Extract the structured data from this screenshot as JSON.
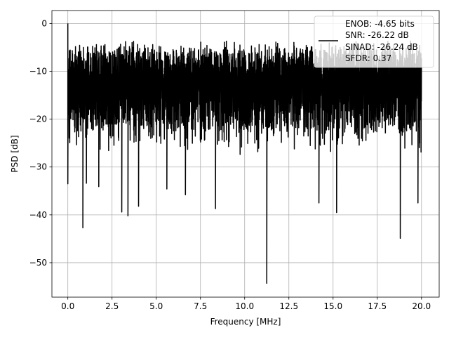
{
  "chart_data": {
    "type": "line",
    "title": "",
    "xlabel": "Frequency [MHz]",
    "ylabel": "PSD [dB]",
    "xlim": [
      -0.9,
      21.0
    ],
    "ylim": [
      -57.2,
      2.7
    ],
    "x_ticks": [
      "0.0",
      "2.5",
      "5.0",
      "7.5",
      "10.0",
      "12.5",
      "15.0",
      "17.5",
      "20.0"
    ],
    "y_ticks": [
      "0",
      "−10",
      "−20",
      "−30",
      "−40",
      "−50"
    ],
    "grid": true,
    "legend_placement": "upper-right",
    "legend_entries": [
      "ENOB: -4.65 bits",
      "SNR: -26.22 dB",
      "SINAD: -26.24 dB",
      "SFDR: 0.37"
    ],
    "series": [
      {
        "color": "#000000",
        "x_range": [
          0,
          20
        ],
        "typical_upper_db": -5,
        "typical_lower_db": -25,
        "notable_points": [
          {
            "x": 0.0,
            "y": 0.0
          },
          {
            "x": 0.0,
            "y": -33.5
          },
          {
            "x": 0.85,
            "y": -42.7
          },
          {
            "x": 1.05,
            "y": -33.4
          },
          {
            "x": 1.75,
            "y": -34.1
          },
          {
            "x": 3.05,
            "y": -39.4
          },
          {
            "x": 3.4,
            "y": -40.2
          },
          {
            "x": 4.0,
            "y": -38.2
          },
          {
            "x": 5.6,
            "y": -34.6
          },
          {
            "x": 6.65,
            "y": -35.8
          },
          {
            "x": 8.35,
            "y": -38.7
          },
          {
            "x": 11.25,
            "y": -54.3
          },
          {
            "x": 14.2,
            "y": -37.5
          },
          {
            "x": 15.2,
            "y": -39.5
          },
          {
            "x": 18.8,
            "y": -44.9
          },
          {
            "x": 19.8,
            "y": -37.5
          }
        ]
      }
    ]
  }
}
